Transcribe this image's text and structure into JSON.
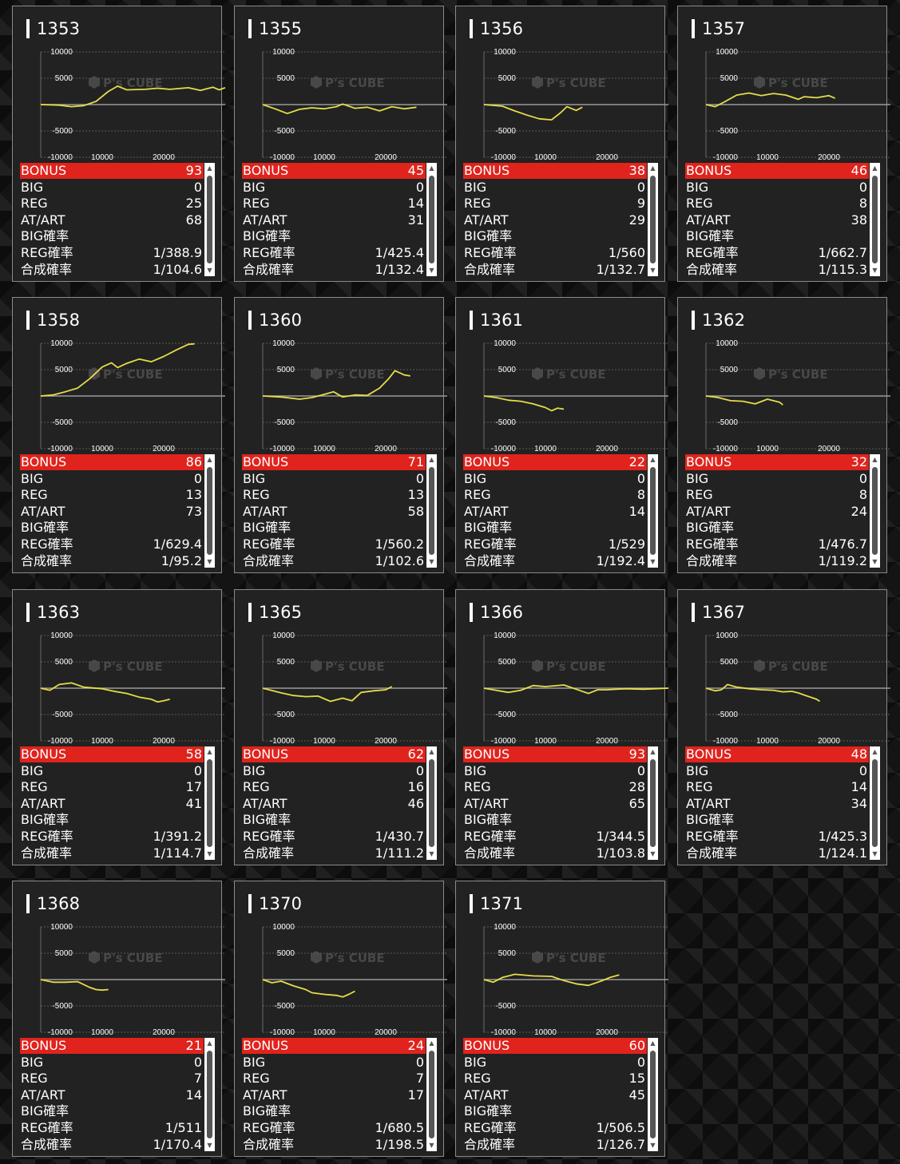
{
  "colors": {
    "accent": "#e0231d",
    "line": "#e6dc4a",
    "zero_line": "#9a9a9a",
    "panel": "#222222"
  },
  "labels": {
    "bonus": "BONUS",
    "big": "BIG",
    "reg": "REG",
    "atart": "AT/ART",
    "big_rate": "BIG確率",
    "reg_rate": "REG確率",
    "combined_rate": "合成確率"
  },
  "watermark": {
    "brand": "P's CUBE"
  },
  "chart_axis": {
    "y_ticks": [
      "10000",
      "5000",
      "-5000",
      "-10000"
    ],
    "x_ticks": [
      "10000",
      "20000"
    ],
    "ylim": [
      -10000,
      10000
    ],
    "xlim": [
      0,
      30000
    ]
  },
  "machines": [
    {
      "id": "1353",
      "bonus": "93",
      "big": "0",
      "reg": "25",
      "atart": "68",
      "big_rate": "",
      "reg_rate": "1/388.9",
      "combined_rate": "1/104.6",
      "chart_data": {
        "type": "line",
        "points": [
          [
            0,
            0
          ],
          [
            3000,
            -100
          ],
          [
            5000,
            -400
          ],
          [
            7000,
            -200
          ],
          [
            9000,
            600
          ],
          [
            11000,
            2500
          ],
          [
            12500,
            3500
          ],
          [
            14000,
            2800
          ],
          [
            17000,
            2900
          ],
          [
            19000,
            3100
          ],
          [
            21000,
            2900
          ],
          [
            24000,
            3200
          ],
          [
            26000,
            2700
          ],
          [
            28000,
            3300
          ],
          [
            29000,
            2800
          ],
          [
            30000,
            3200
          ]
        ]
      }
    },
    {
      "id": "1355",
      "bonus": "45",
      "big": "0",
      "reg": "14",
      "atart": "31",
      "big_rate": "",
      "reg_rate": "1/425.4",
      "combined_rate": "1/132.4",
      "chart_data": {
        "type": "line",
        "points": [
          [
            0,
            0
          ],
          [
            2000,
            -800
          ],
          [
            4000,
            -1700
          ],
          [
            6000,
            -900
          ],
          [
            8000,
            -600
          ],
          [
            10000,
            -800
          ],
          [
            12000,
            -400
          ],
          [
            13000,
            100
          ],
          [
            15000,
            -700
          ],
          [
            17000,
            -500
          ],
          [
            19000,
            -1200
          ],
          [
            21000,
            -400
          ],
          [
            23000,
            -800
          ],
          [
            25000,
            -500
          ]
        ]
      }
    },
    {
      "id": "1356",
      "bonus": "38",
      "big": "0",
      "reg": "9",
      "atart": "29",
      "big_rate": "",
      "reg_rate": "1/560",
      "combined_rate": "1/132.7",
      "chart_data": {
        "type": "line",
        "points": [
          [
            0,
            0
          ],
          [
            3000,
            -300
          ],
          [
            5000,
            -1200
          ],
          [
            7000,
            -2000
          ],
          [
            9000,
            -2700
          ],
          [
            11000,
            -2900
          ],
          [
            12500,
            -1500
          ],
          [
            13500,
            -400
          ],
          [
            15000,
            -1100
          ],
          [
            16000,
            -500
          ]
        ]
      }
    },
    {
      "id": "1357",
      "bonus": "46",
      "big": "0",
      "reg": "8",
      "atart": "38",
      "big_rate": "",
      "reg_rate": "1/662.7",
      "combined_rate": "1/115.3",
      "chart_data": {
        "type": "line",
        "points": [
          [
            0,
            0
          ],
          [
            1500,
            -400
          ],
          [
            3000,
            500
          ],
          [
            5000,
            1800
          ],
          [
            7000,
            2200
          ],
          [
            9000,
            1700
          ],
          [
            11000,
            2100
          ],
          [
            13000,
            1800
          ],
          [
            15000,
            1000
          ],
          [
            16000,
            1500
          ],
          [
            18000,
            1300
          ],
          [
            20000,
            1700
          ],
          [
            21000,
            1200
          ]
        ]
      }
    },
    {
      "id": "1358",
      "bonus": "86",
      "big": "0",
      "reg": "13",
      "atart": "73",
      "big_rate": "",
      "reg_rate": "1/629.4",
      "combined_rate": "1/95.2",
      "chart_data": {
        "type": "line",
        "points": [
          [
            0,
            0
          ],
          [
            2000,
            200
          ],
          [
            4000,
            800
          ],
          [
            6000,
            1500
          ],
          [
            8000,
            3300
          ],
          [
            10000,
            5500
          ],
          [
            11500,
            6300
          ],
          [
            12500,
            5400
          ],
          [
            14000,
            6200
          ],
          [
            16000,
            7000
          ],
          [
            18000,
            6500
          ],
          [
            20000,
            7500
          ],
          [
            22000,
            8700
          ],
          [
            24000,
            9800
          ],
          [
            25000,
            9900
          ]
        ]
      }
    },
    {
      "id": "1360",
      "bonus": "71",
      "big": "0",
      "reg": "13",
      "atart": "58",
      "big_rate": "",
      "reg_rate": "1/560.2",
      "combined_rate": "1/102.6",
      "chart_data": {
        "type": "line",
        "points": [
          [
            0,
            0
          ],
          [
            3000,
            -200
          ],
          [
            6000,
            -600
          ],
          [
            8000,
            -300
          ],
          [
            10000,
            300
          ],
          [
            11500,
            800
          ],
          [
            13000,
            -200
          ],
          [
            15000,
            200
          ],
          [
            17000,
            100
          ],
          [
            19000,
            1500
          ],
          [
            20500,
            3300
          ],
          [
            21500,
            4800
          ],
          [
            23000,
            4000
          ],
          [
            24000,
            3800
          ]
        ]
      }
    },
    {
      "id": "1361",
      "bonus": "22",
      "big": "0",
      "reg": "8",
      "atart": "14",
      "big_rate": "",
      "reg_rate": "1/529",
      "combined_rate": "1/192.4",
      "chart_data": {
        "type": "line",
        "points": [
          [
            0,
            0
          ],
          [
            2000,
            -300
          ],
          [
            4000,
            -800
          ],
          [
            6000,
            -1000
          ],
          [
            8000,
            -1500
          ],
          [
            10000,
            -2200
          ],
          [
            11000,
            -2800
          ],
          [
            12000,
            -2300
          ],
          [
            13000,
            -2500
          ]
        ]
      }
    },
    {
      "id": "1362",
      "bonus": "32",
      "big": "0",
      "reg": "8",
      "atart": "24",
      "big_rate": "",
      "reg_rate": "1/476.7",
      "combined_rate": "1/119.2",
      "chart_data": {
        "type": "line",
        "points": [
          [
            0,
            0
          ],
          [
            2000,
            -300
          ],
          [
            4000,
            -900
          ],
          [
            6000,
            -1000
          ],
          [
            8000,
            -1500
          ],
          [
            10000,
            -600
          ],
          [
            12000,
            -1200
          ],
          [
            12500,
            -1700
          ]
        ]
      }
    },
    {
      "id": "1363",
      "bonus": "58",
      "big": "0",
      "reg": "17",
      "atart": "41",
      "big_rate": "",
      "reg_rate": "1/391.2",
      "combined_rate": "1/114.7",
      "chart_data": {
        "type": "line",
        "points": [
          [
            0,
            0
          ],
          [
            1500,
            -400
          ],
          [
            3000,
            700
          ],
          [
            5000,
            1000
          ],
          [
            7000,
            200
          ],
          [
            10000,
            -100
          ],
          [
            12000,
            -600
          ],
          [
            14000,
            -1000
          ],
          [
            16000,
            -1700
          ],
          [
            18000,
            -2100
          ],
          [
            19000,
            -2600
          ],
          [
            20000,
            -2400
          ],
          [
            21000,
            -2100
          ]
        ]
      }
    },
    {
      "id": "1365",
      "bonus": "62",
      "big": "0",
      "reg": "16",
      "atart": "46",
      "big_rate": "",
      "reg_rate": "1/430.7",
      "combined_rate": "1/111.2",
      "chart_data": {
        "type": "line",
        "points": [
          [
            0,
            0
          ],
          [
            3000,
            -900
          ],
          [
            5000,
            -1400
          ],
          [
            7000,
            -1600
          ],
          [
            9000,
            -1500
          ],
          [
            11000,
            -2500
          ],
          [
            13000,
            -1900
          ],
          [
            14500,
            -2400
          ],
          [
            16000,
            -800
          ],
          [
            18000,
            -500
          ],
          [
            20000,
            -300
          ],
          [
            21000,
            300
          ]
        ]
      }
    },
    {
      "id": "1366",
      "bonus": "93",
      "big": "0",
      "reg": "28",
      "atart": "65",
      "big_rate": "",
      "reg_rate": "1/344.5",
      "combined_rate": "1/103.8",
      "chart_data": {
        "type": "line",
        "points": [
          [
            0,
            0
          ],
          [
            4000,
            -800
          ],
          [
            6000,
            -400
          ],
          [
            8000,
            500
          ],
          [
            10000,
            300
          ],
          [
            13000,
            600
          ],
          [
            15000,
            -200
          ],
          [
            17000,
            -1000
          ],
          [
            18500,
            -300
          ],
          [
            20000,
            -300
          ],
          [
            23000,
            -100
          ],
          [
            26000,
            -200
          ],
          [
            30000,
            0
          ]
        ]
      }
    },
    {
      "id": "1367",
      "bonus": "48",
      "big": "0",
      "reg": "14",
      "atart": "34",
      "big_rate": "",
      "reg_rate": "1/425.3",
      "combined_rate": "1/124.1",
      "chart_data": {
        "type": "line",
        "points": [
          [
            0,
            0
          ],
          [
            1500,
            -500
          ],
          [
            2500,
            -300
          ],
          [
            3500,
            700
          ],
          [
            5000,
            200
          ],
          [
            7000,
            -100
          ],
          [
            9000,
            -300
          ],
          [
            11000,
            -400
          ],
          [
            12500,
            -700
          ],
          [
            14000,
            -600
          ],
          [
            15000,
            -900
          ],
          [
            16000,
            -1300
          ],
          [
            18000,
            -2100
          ],
          [
            18500,
            -2500
          ]
        ]
      }
    },
    {
      "id": "1368",
      "bonus": "21",
      "big": "0",
      "reg": "7",
      "atart": "14",
      "big_rate": "",
      "reg_rate": "1/511",
      "combined_rate": "1/170.4",
      "chart_data": {
        "type": "line",
        "points": [
          [
            0,
            0
          ],
          [
            2000,
            -500
          ],
          [
            4000,
            -500
          ],
          [
            6000,
            -400
          ],
          [
            8000,
            -1500
          ],
          [
            9000,
            -1900
          ],
          [
            10000,
            -2000
          ],
          [
            11000,
            -1900
          ]
        ]
      }
    },
    {
      "id": "1370",
      "bonus": "24",
      "big": "0",
      "reg": "7",
      "atart": "17",
      "big_rate": "",
      "reg_rate": "1/680.5",
      "combined_rate": "1/198.5",
      "chart_data": {
        "type": "line",
        "points": [
          [
            0,
            0
          ],
          [
            1500,
            -600
          ],
          [
            3000,
            -300
          ],
          [
            5000,
            -1200
          ],
          [
            7000,
            -1900
          ],
          [
            8000,
            -2500
          ],
          [
            10000,
            -2800
          ],
          [
            12000,
            -3000
          ],
          [
            13000,
            -3300
          ],
          [
            14000,
            -2800
          ],
          [
            15000,
            -2200
          ]
        ]
      }
    },
    {
      "id": "1371",
      "bonus": "60",
      "big": "0",
      "reg": "15",
      "atart": "45",
      "big_rate": "",
      "reg_rate": "1/506.5",
      "combined_rate": "1/126.7",
      "chart_data": {
        "type": "line",
        "points": [
          [
            0,
            0
          ],
          [
            1500,
            -500
          ],
          [
            3000,
            400
          ],
          [
            5000,
            1000
          ],
          [
            8000,
            700
          ],
          [
            11000,
            600
          ],
          [
            13000,
            -200
          ],
          [
            15000,
            -800
          ],
          [
            17000,
            -1100
          ],
          [
            19000,
            -300
          ],
          [
            20500,
            400
          ],
          [
            22000,
            900
          ]
        ]
      }
    }
  ]
}
